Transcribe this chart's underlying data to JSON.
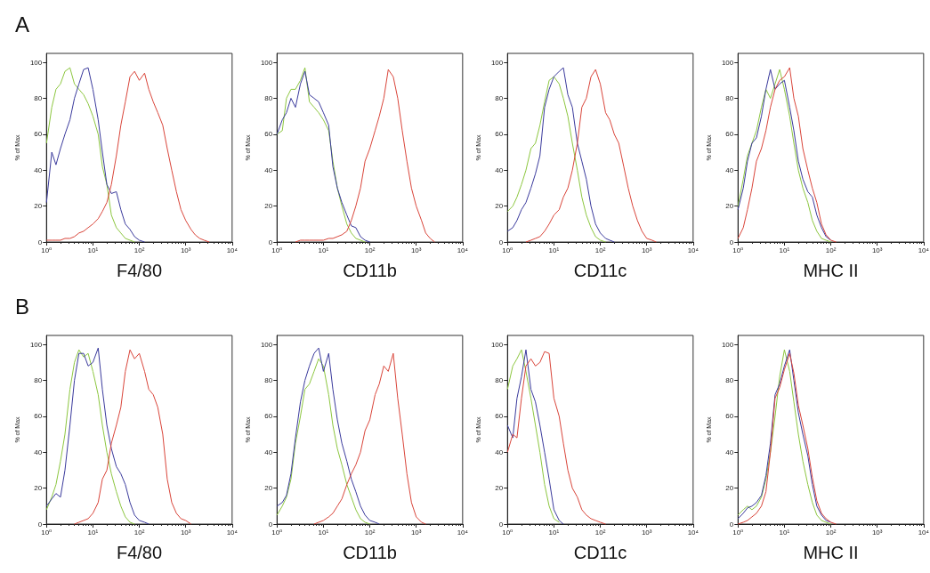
{
  "chart_data": [
    {
      "type": "line",
      "title": "A",
      "xlabel": "F4/80",
      "ylabel": "% of Max",
      "log": "x",
      "xlim": [
        1,
        10000
      ],
      "xticks": [
        {
          "value": 1,
          "label": "10⁰"
        },
        {
          "value": 10,
          "label": "10¹"
        },
        {
          "value": 100,
          "label": "10²"
        },
        {
          "value": 1000,
          "label": "10³"
        },
        {
          "value": 10000,
          "label": "10⁴"
        }
      ],
      "ylim": [
        0,
        105
      ],
      "yticks": [
        0,
        20,
        40,
        60,
        80,
        100
      ],
      "x": [
        1,
        1.3,
        1.6,
        2,
        2.5,
        3.2,
        4,
        5,
        6.3,
        7.9,
        10,
        13,
        16,
        20,
        25,
        32,
        40,
        50,
        63,
        79,
        100,
        130,
        160,
        200,
        250,
        320,
        400,
        500,
        630,
        790,
        1000,
        1300,
        1600,
        2000,
        2500,
        3200
      ],
      "series": [
        {
          "color": "#8cc63f",
          "values": [
            55,
            75,
            85,
            88,
            95,
            97,
            88,
            85,
            82,
            77,
            70,
            60,
            42,
            32,
            15,
            8,
            5,
            2,
            1,
            0,
            null,
            null,
            null,
            null,
            null,
            null,
            null,
            null,
            null,
            null,
            null,
            null,
            null,
            null,
            null,
            null
          ]
        },
        {
          "color": "#3a3a9c",
          "values": [
            22,
            50,
            43,
            52,
            60,
            68,
            80,
            88,
            96,
            97,
            85,
            68,
            50,
            32,
            27,
            28,
            18,
            10,
            7,
            3,
            1,
            0,
            null,
            null,
            null,
            null,
            null,
            null,
            null,
            null,
            null,
            null,
            null,
            null,
            null,
            null
          ]
        },
        {
          "color": "#d9453a",
          "values": [
            1,
            1,
            1,
            1,
            2,
            2,
            3,
            5,
            6,
            8,
            10,
            13,
            17,
            22,
            32,
            48,
            65,
            78,
            92,
            95,
            90,
            94,
            85,
            78,
            72,
            65,
            52,
            40,
            28,
            18,
            12,
            7,
            4,
            2,
            1,
            0
          ]
        }
      ]
    },
    {
      "type": "line",
      "xlabel": "CD11b",
      "ylabel": "% of Max",
      "log": "x",
      "xlim": [
        1,
        10000
      ],
      "xticks": [
        {
          "value": 1,
          "label": "10⁰"
        },
        {
          "value": 10,
          "label": "10¹"
        },
        {
          "value": 100,
          "label": "10²"
        },
        {
          "value": 1000,
          "label": "10³"
        },
        {
          "value": 10000,
          "label": "10⁴"
        }
      ],
      "ylim": [
        0,
        105
      ],
      "yticks": [
        0,
        20,
        40,
        60,
        80,
        100
      ],
      "x": [
        1,
        1.3,
        1.6,
        2,
        2.5,
        3.2,
        4,
        5,
        6.3,
        7.9,
        10,
        13,
        16,
        20,
        25,
        32,
        40,
        50,
        63,
        79,
        100,
        130,
        160,
        200,
        250,
        320,
        400,
        500,
        630,
        790,
        1000,
        1300,
        1600,
        2000,
        2500
      ],
      "series": [
        {
          "color": "#8cc63f",
          "values": [
            60,
            62,
            80,
            85,
            85,
            90,
            97,
            78,
            75,
            72,
            68,
            62,
            45,
            30,
            20,
            10,
            5,
            2,
            1,
            0,
            null,
            null,
            null,
            null,
            null,
            null,
            null,
            null,
            null,
            null,
            null,
            null,
            null,
            null,
            null
          ]
        },
        {
          "color": "#3a3a9c",
          "values": [
            60,
            68,
            72,
            80,
            75,
            88,
            95,
            82,
            80,
            78,
            72,
            65,
            42,
            30,
            22,
            15,
            9,
            8,
            3,
            1,
            0,
            null,
            null,
            null,
            null,
            null,
            null,
            null,
            null,
            null,
            null,
            null,
            null,
            null,
            null
          ]
        },
        {
          "color": "#d9453a",
          "values": [
            null,
            null,
            null,
            null,
            0,
            1,
            1,
            1,
            1,
            1,
            1,
            2,
            2,
            3,
            4,
            6,
            12,
            20,
            30,
            45,
            52,
            62,
            70,
            80,
            96,
            92,
            80,
            62,
            45,
            30,
            20,
            12,
            5,
            2,
            0
          ]
        }
      ]
    },
    {
      "type": "line",
      "xlabel": "CD11c",
      "ylabel": "% of Max",
      "log": "x",
      "xlim": [
        1,
        10000
      ],
      "xticks": [
        {
          "value": 1,
          "label": "10⁰"
        },
        {
          "value": 10,
          "label": "10¹"
        },
        {
          "value": 100,
          "label": "10²"
        },
        {
          "value": 1000,
          "label": "10³"
        },
        {
          "value": 10000,
          "label": "10⁴"
        }
      ],
      "ylim": [
        0,
        105
      ],
      "yticks": [
        0,
        20,
        40,
        60,
        80,
        100
      ],
      "x": [
        1,
        1.3,
        1.6,
        2,
        2.5,
        3.2,
        4,
        5,
        6.3,
        7.9,
        10,
        13,
        16,
        20,
        25,
        32,
        40,
        50,
        63,
        79,
        100,
        130,
        160,
        200,
        250,
        320,
        400,
        500,
        630,
        790,
        1000,
        1300,
        1600
      ],
      "series": [
        {
          "color": "#8cc63f",
          "values": [
            17,
            20,
            25,
            32,
            40,
            52,
            55,
            65,
            78,
            90,
            92,
            88,
            80,
            70,
            55,
            40,
            25,
            15,
            8,
            3,
            1,
            0,
            null,
            null,
            null,
            null,
            null,
            null,
            null,
            null,
            null,
            null,
            null
          ]
        },
        {
          "color": "#3a3a9c",
          "values": [
            6,
            8,
            12,
            18,
            22,
            30,
            38,
            48,
            75,
            85,
            92,
            95,
            97,
            82,
            75,
            55,
            45,
            35,
            20,
            10,
            5,
            2,
            1,
            0,
            null,
            null,
            null,
            null,
            null,
            null,
            null,
            null,
            null
          ]
        },
        {
          "color": "#d9453a",
          "values": [
            null,
            null,
            null,
            null,
            0,
            1,
            2,
            3,
            6,
            10,
            15,
            18,
            25,
            30,
            40,
            55,
            75,
            80,
            92,
            96,
            88,
            72,
            68,
            60,
            55,
            42,
            30,
            20,
            12,
            6,
            2,
            1,
            0
          ]
        }
      ]
    },
    {
      "type": "line",
      "xlabel": "MHC II",
      "ylabel": "% of Max",
      "log": "x",
      "xlim": [
        1,
        10000
      ],
      "xticks": [
        {
          "value": 1,
          "label": "10⁰"
        },
        {
          "value": 10,
          "label": "10¹"
        },
        {
          "value": 100,
          "label": "10²"
        },
        {
          "value": 1000,
          "label": "10³"
        },
        {
          "value": 10000,
          "label": "10⁴"
        }
      ],
      "ylim": [
        0,
        105
      ],
      "yticks": [
        0,
        20,
        40,
        60,
        80,
        100
      ],
      "x": [
        1,
        1.3,
        1.6,
        2,
        2.5,
        3.2,
        4,
        5,
        6.3,
        7.9,
        10,
        13,
        16,
        20,
        25,
        32,
        40,
        50,
        63,
        79,
        100,
        130
      ],
      "series": [
        {
          "color": "#8cc63f",
          "values": [
            20,
            35,
            48,
            55,
            62,
            75,
            85,
            80,
            88,
            96,
            85,
            70,
            55,
            40,
            30,
            22,
            12,
            6,
            2,
            1,
            0,
            null
          ]
        },
        {
          "color": "#3a3a9c",
          "values": [
            18,
            30,
            45,
            55,
            58,
            70,
            85,
            96,
            85,
            88,
            90,
            75,
            62,
            45,
            35,
            28,
            25,
            15,
            8,
            3,
            1,
            null
          ]
        },
        {
          "color": "#d9453a",
          "values": [
            2,
            8,
            18,
            30,
            45,
            52,
            62,
            75,
            85,
            90,
            92,
            97,
            80,
            70,
            52,
            40,
            30,
            22,
            10,
            4,
            1,
            0
          ]
        }
      ]
    },
    {
      "type": "line",
      "title": "B",
      "xlabel": "F4/80",
      "ylabel": "% of Max",
      "log": "x",
      "xlim": [
        1,
        10000
      ],
      "xticks": [
        {
          "value": 1,
          "label": "10⁰"
        },
        {
          "value": 10,
          "label": "10¹"
        },
        {
          "value": 100,
          "label": "10²"
        },
        {
          "value": 1000,
          "label": "10³"
        },
        {
          "value": 10000,
          "label": "10⁴"
        }
      ],
      "ylim": [
        0,
        105
      ],
      "yticks": [
        0,
        20,
        40,
        60,
        80,
        100
      ],
      "x": [
        1,
        1.3,
        1.6,
        2,
        2.5,
        3.2,
        4,
        5,
        6.3,
        7.9,
        10,
        13,
        16,
        20,
        25,
        32,
        40,
        50,
        63,
        79,
        100,
        130,
        160,
        200,
        250,
        320,
        400,
        500,
        630,
        790,
        1000,
        1300
      ],
      "series": [
        {
          "color": "#8cc63f",
          "values": [
            8,
            15,
            22,
            35,
            50,
            75,
            90,
            97,
            93,
            95,
            85,
            72,
            55,
            40,
            28,
            18,
            10,
            4,
            1,
            0,
            null,
            null,
            null,
            null,
            null,
            null,
            null,
            null,
            null,
            null,
            null,
            null
          ]
        },
        {
          "color": "#3a3a9c",
          "values": [
            10,
            14,
            17,
            15,
            30,
            55,
            80,
            95,
            95,
            88,
            90,
            98,
            75,
            55,
            42,
            32,
            28,
            22,
            12,
            5,
            2,
            1,
            0,
            null,
            null,
            null,
            null,
            null,
            null,
            null,
            null,
            null
          ]
        },
        {
          "color": "#d9453a",
          "values": [
            null,
            null,
            null,
            null,
            null,
            null,
            0,
            1,
            2,
            3,
            6,
            12,
            25,
            30,
            45,
            55,
            65,
            85,
            97,
            92,
            95,
            85,
            75,
            72,
            65,
            50,
            25,
            12,
            6,
            3,
            2,
            0
          ]
        }
      ]
    },
    {
      "type": "line",
      "xlabel": "CD11b",
      "ylabel": "% of Max",
      "log": "x",
      "xlim": [
        1,
        10000
      ],
      "xticks": [
        {
          "value": 1,
          "label": "10⁰"
        },
        {
          "value": 10,
          "label": "10¹"
        },
        {
          "value": 100,
          "label": "10²"
        },
        {
          "value": 1000,
          "label": "10³"
        },
        {
          "value": 10000,
          "label": "10⁴"
        }
      ],
      "ylim": [
        0,
        105
      ],
      "yticks": [
        0,
        20,
        40,
        60,
        80,
        100
      ],
      "x": [
        1,
        1.3,
        1.6,
        2,
        2.5,
        3.2,
        4,
        5,
        6.3,
        7.9,
        10,
        13,
        16,
        20,
        25,
        32,
        40,
        50,
        63,
        79,
        100,
        130,
        160,
        200,
        250,
        320,
        400,
        500,
        630,
        790,
        1000,
        1300,
        1600
      ],
      "series": [
        {
          "color": "#8cc63f",
          "values": [
            5,
            10,
            15,
            25,
            45,
            60,
            75,
            78,
            85,
            92,
            88,
            72,
            55,
            42,
            33,
            22,
            15,
            8,
            3,
            1,
            0,
            null,
            null,
            null,
            null,
            null,
            null,
            null,
            null,
            null,
            null,
            null,
            null
          ]
        },
        {
          "color": "#3a3a9c",
          "values": [
            10,
            12,
            16,
            28,
            48,
            68,
            80,
            88,
            95,
            98,
            85,
            95,
            75,
            58,
            45,
            35,
            25,
            18,
            10,
            5,
            2,
            1,
            0,
            null,
            null,
            null,
            null,
            null,
            null,
            null,
            null,
            null,
            null
          ]
        },
        {
          "color": "#d9453a",
          "values": [
            null,
            null,
            null,
            null,
            null,
            null,
            null,
            null,
            0,
            1,
            2,
            4,
            6,
            10,
            14,
            22,
            28,
            33,
            40,
            52,
            58,
            72,
            78,
            88,
            85,
            95,
            70,
            50,
            28,
            12,
            4,
            1,
            0
          ]
        }
      ]
    },
    {
      "type": "line",
      "xlabel": "CD11c",
      "ylabel": "% of Max",
      "log": "x",
      "xlim": [
        1,
        10000
      ],
      "xticks": [
        {
          "value": 1,
          "label": "10⁰"
        },
        {
          "value": 10,
          "label": "10¹"
        },
        {
          "value": 100,
          "label": "10²"
        },
        {
          "value": 1000,
          "label": "10³"
        },
        {
          "value": 10000,
          "label": "10⁴"
        }
      ],
      "ylim": [
        0,
        105
      ],
      "yticks": [
        0,
        20,
        40,
        60,
        80,
        100
      ],
      "x": [
        1,
        1.3,
        1.6,
        2,
        2.5,
        3.2,
        4,
        5,
        6.3,
        7.9,
        10,
        13,
        16,
        20,
        25,
        32,
        40,
        50,
        63,
        79,
        100,
        130
      ],
      "series": [
        {
          "color": "#8cc63f",
          "values": [
            75,
            88,
            92,
            97,
            85,
            70,
            55,
            40,
            22,
            10,
            3,
            1,
            null,
            null,
            null,
            null,
            null,
            null,
            null,
            null,
            null,
            null
          ]
        },
        {
          "color": "#3a3a9c",
          "values": [
            55,
            48,
            70,
            82,
            97,
            75,
            68,
            55,
            40,
            25,
            8,
            2,
            0,
            null,
            null,
            null,
            null,
            null,
            null,
            null,
            null,
            null
          ]
        },
        {
          "color": "#d9453a",
          "values": [
            40,
            50,
            48,
            70,
            88,
            92,
            88,
            90,
            96,
            95,
            70,
            60,
            45,
            30,
            20,
            15,
            8,
            5,
            3,
            2,
            1,
            0
          ]
        }
      ]
    },
    {
      "type": "line",
      "xlabel": "MHC II",
      "ylabel": "% of Max",
      "log": "x",
      "xlim": [
        1,
        10000
      ],
      "xticks": [
        {
          "value": 1,
          "label": "10⁰"
        },
        {
          "value": 10,
          "label": "10¹"
        },
        {
          "value": 100,
          "label": "10²"
        },
        {
          "value": 1000,
          "label": "10³"
        },
        {
          "value": 10000,
          "label": "10⁴"
        }
      ],
      "ylim": [
        0,
        105
      ],
      "yticks": [
        0,
        20,
        40,
        60,
        80,
        100
      ],
      "x": [
        1,
        1.3,
        1.6,
        2,
        2.5,
        3.2,
        4,
        5,
        6.3,
        7.9,
        10,
        13,
        16,
        20,
        25,
        32,
        40,
        50,
        63,
        79,
        100,
        130
      ],
      "series": [
        {
          "color": "#8cc63f",
          "values": [
            5,
            8,
            10,
            8,
            10,
            15,
            25,
            40,
            60,
            82,
            97,
            85,
            68,
            50,
            35,
            22,
            12,
            5,
            2,
            1,
            0,
            null
          ]
        },
        {
          "color": "#3a3a9c",
          "values": [
            3,
            6,
            9,
            10,
            12,
            16,
            27,
            45,
            72,
            78,
            88,
            97,
            80,
            62,
            50,
            38,
            22,
            10,
            5,
            2,
            1,
            null
          ]
        },
        {
          "color": "#d9453a",
          "values": [
            0,
            1,
            2,
            4,
            6,
            10,
            18,
            40,
            70,
            76,
            86,
            95,
            84,
            66,
            55,
            42,
            26,
            13,
            6,
            3,
            1,
            0
          ]
        }
      ]
    }
  ]
}
